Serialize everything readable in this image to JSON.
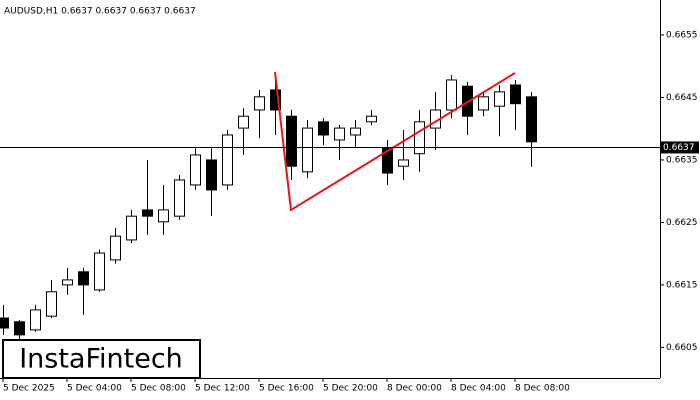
{
  "chart_data": {
    "type": "candlestick",
    "title": "AUDUSD,H1  0.6637 0.6637 0.6637 0.6637",
    "watermark": "InstaFintech",
    "categories": [
      "5 Dec 2025",
      null,
      null,
      null,
      "5 Dec 04:00",
      null,
      null,
      null,
      "5 Dec 08:00",
      null,
      null,
      null,
      "5 Dec 12:00",
      null,
      null,
      null,
      "5 Dec 16:00",
      null,
      null,
      null,
      "5 Dec 20:00",
      null,
      null,
      null,
      "8 Dec 00:00",
      null,
      null,
      null,
      "8 Dec 04:00",
      null,
      null,
      null,
      "8 Dec 08:00",
      null
    ],
    "open": [
      0.66097,
      0.66091,
      0.66078,
      0.661,
      0.6615,
      0.66171,
      0.66142,
      0.6619,
      0.66222,
      0.6627,
      0.66251,
      0.6626,
      0.6631,
      0.6635,
      0.6631,
      0.66401,
      0.6643,
      0.66462,
      0.6642,
      0.66331,
      0.66411,
      0.66382,
      0.6639,
      0.66411,
      0.66369,
      0.6634,
      0.6636,
      0.66401,
      0.6643,
      0.66468,
      0.6643,
      0.66436,
      0.6647,
      0.66451
    ],
    "high": [
      0.66118,
      0.66094,
      0.66118,
      0.66158,
      0.66177,
      0.66177,
      0.66206,
      0.66241,
      0.6627,
      0.6635,
      0.6631,
      0.66326,
      0.66369,
      0.66369,
      0.66398,
      0.66433,
      0.66462,
      0.66491,
      0.6643,
      0.66414,
      0.66417,
      0.66406,
      0.66414,
      0.6643,
      0.66382,
      0.66398,
      0.6643,
      0.66459,
      0.66486,
      0.66475,
      0.66459,
      0.6647,
      0.66478,
      0.66459
    ],
    "low": [
      0.6607,
      0.66062,
      0.66075,
      0.66097,
      0.66134,
      0.66102,
      0.66139,
      0.66184,
      0.66217,
      0.6623,
      0.6623,
      0.66254,
      0.66302,
      0.6626,
      0.66302,
      0.66358,
      0.66385,
      0.6639,
      0.66318,
      0.66321,
      0.66374,
      0.6635,
      0.66369,
      0.66406,
      0.6631,
      0.66318,
      0.66331,
      0.66366,
      0.66417,
      0.6639,
      0.6642,
      0.66388,
      0.66398,
      0.66339
    ],
    "close": [
      0.66081,
      0.6607,
      0.6611,
      0.66139,
      0.66158,
      0.6615,
      0.66201,
      0.66228,
      0.6626,
      0.6626,
      0.6627,
      0.66318,
      0.66358,
      0.66302,
      0.6639,
      0.6642,
      0.66451,
      0.6643,
      0.6634,
      0.66401,
      0.6639,
      0.66401,
      0.66401,
      0.6642,
      0.66329,
      0.6635,
      0.66411,
      0.6643,
      0.66478,
      0.6642,
      0.66451,
      0.66459,
      0.6644,
      0.66379
    ],
    "up_color": "#ffffff",
    "down_color": "#000000",
    "pattern_color": "#e8141b",
    "current_price": 0.6637,
    "ylim": [
      0.66001,
      0.66606
    ],
    "yticks": [
      0.6605,
      0.6615,
      0.6625,
      0.6635,
      0.6645,
      0.6655
    ]
  }
}
